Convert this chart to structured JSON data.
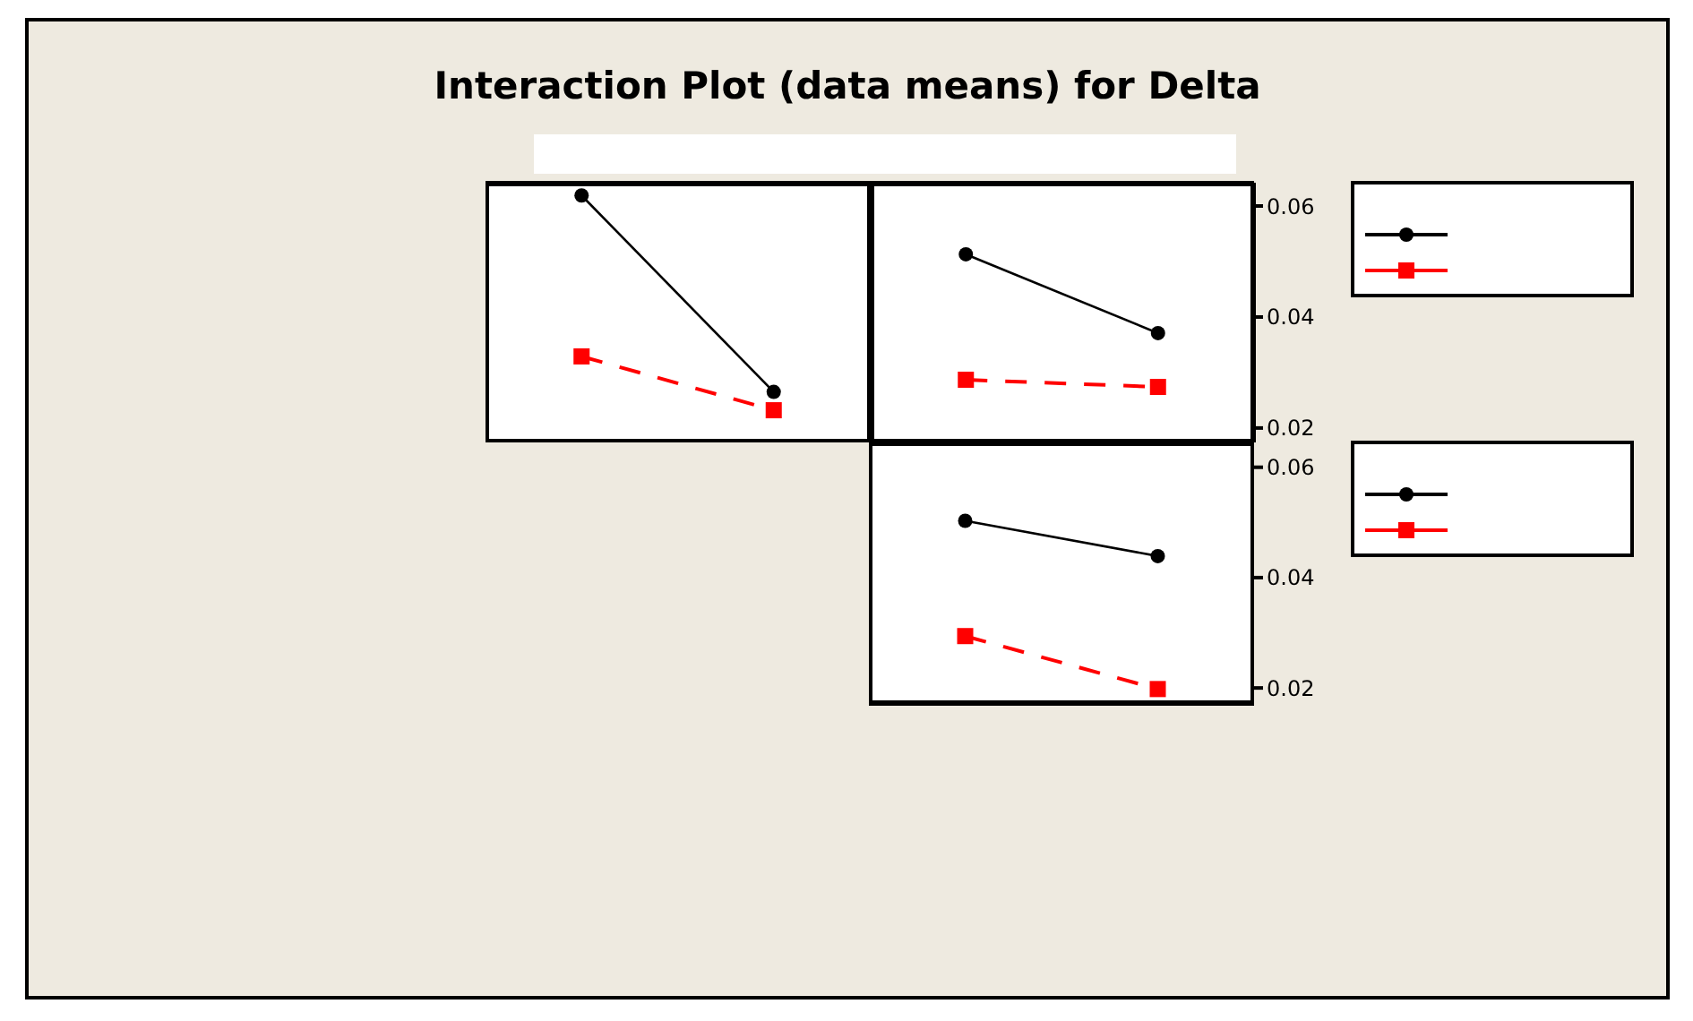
{
  "chart_data": [
    {
      "type": "line",
      "title": "Interaction Plot (data means) for Delta",
      "categories": [
        null,
        null,
        null,
        null
      ],
      "ylim": [
        0.0174,
        0.0642
      ],
      "yticks": [
        0.02,
        0.04,
        0.06
      ],
      "tick_labels": "y",
      "series": [
        {
          "color": "#000000",
          "values": [
            0.0619,
            0.0265,
            null,
            null
          ],
          "marker": "circle",
          "line_style": "solid"
        },
        {
          "color": "#ff0000",
          "values": [
            0.0329,
            0.0232,
            null,
            null
          ],
          "marker": "square",
          "line_style": "dashed"
        },
        {
          "color": "#000000",
          "values": [
            null,
            null,
            0.0513,
            0.0371
          ],
          "marker": "circle",
          "line_style": "solid"
        },
        {
          "color": "#ff0000",
          "values": [
            null,
            null,
            0.0287,
            0.0274
          ],
          "marker": "square",
          "line_style": "dashed"
        }
      ]
    },
    {
      "type": "line",
      "categories": [
        null,
        null
      ],
      "ylim": [
        0.0171,
        0.0645
      ],
      "yticks": [
        0.02,
        0.04,
        0.06
      ],
      "tick_labels": "y",
      "series": [
        {
          "color": "#000000",
          "values": [
            0.0503,
            0.0439
          ],
          "marker": "circle",
          "line_style": "solid"
        },
        {
          "color": "#ff0000",
          "values": [
            0.0294,
            0.0198
          ],
          "marker": "square",
          "line_style": "dashed"
        }
      ]
    }
  ]
}
